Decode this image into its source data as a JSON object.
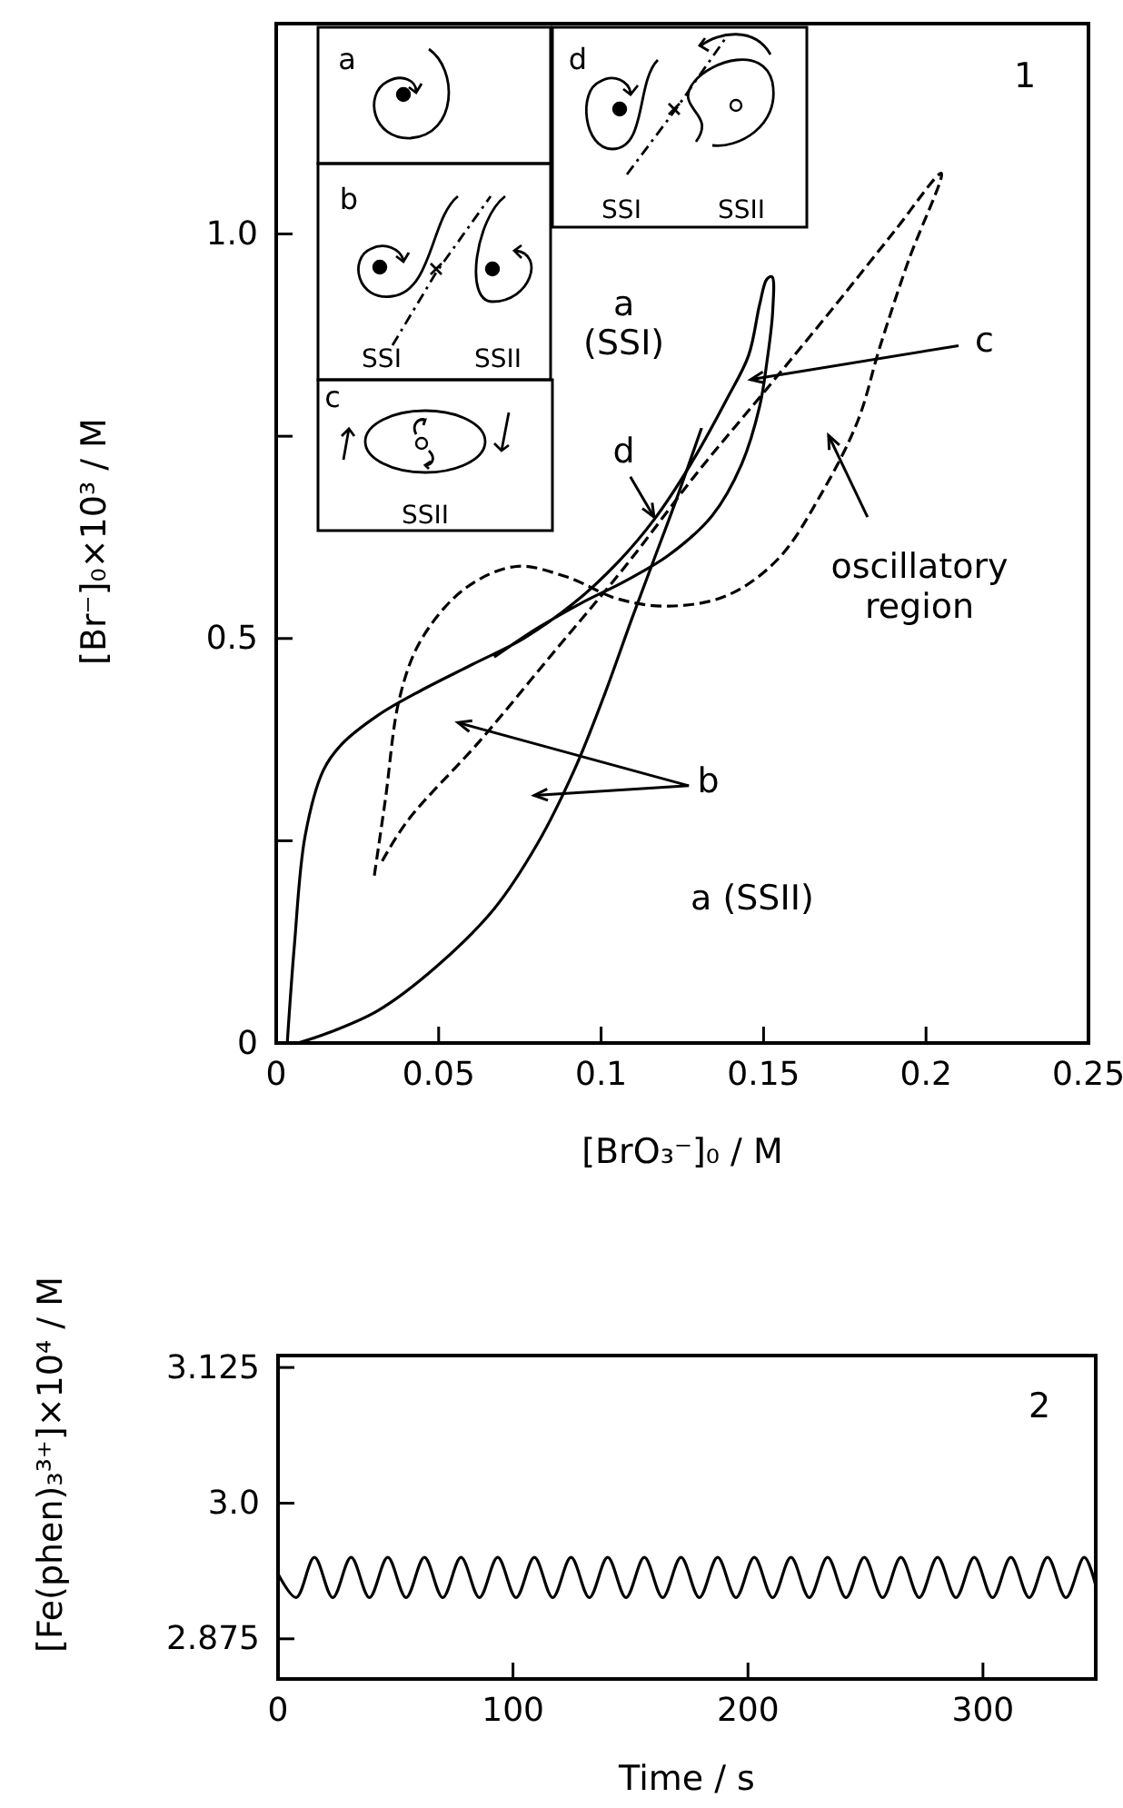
{
  "chart_data": [
    {
      "type": "line",
      "xlabel": "[BrO₃⁻]₀ / M",
      "ylabel": "[Br⁻]₀×10³ / M",
      "xlim": [
        0,
        0.25
      ],
      "ylim": [
        0,
        1.26
      ],
      "xticks": [
        0,
        0.05,
        0.1,
        0.15,
        0.2,
        0.25
      ],
      "yticks": [
        0,
        {
          "value": 0.25,
          "label": null
        },
        {
          "value": 0.5,
          "label": "0.5"
        },
        {
          "value": 0.75,
          "label": null
        },
        {
          "value": 1.0,
          "label": "1.0"
        }
      ],
      "series": [
        {
          "color": "#000000",
          "line_style": "solid",
          "x": [
            0.0034,
            0.0056,
            0.0089,
            0.0145,
            0.0201,
            0.0313,
            0.0447,
            0.0604,
            0.0761,
            0.0917,
            0.1051,
            0.1163,
            0.1275,
            0.1387,
            0.1454,
            0.1488,
            0.151,
            0.1526,
            0.1528,
            0.151,
            0.1488,
            0.1432,
            0.1342,
            0.1208,
            0.1074,
            0.094,
            0.0805,
            0.0671
          ],
          "values": [
            0,
            0.121,
            0.256,
            0.337,
            0.369,
            0.405,
            0.436,
            0.468,
            0.5,
            0.544,
            0.594,
            0.647,
            0.715,
            0.796,
            0.85,
            0.913,
            0.944,
            0.947,
            0.904,
            0.841,
            0.787,
            0.715,
            0.652,
            0.603,
            0.571,
            0.544,
            0.513,
            0.477
          ]
        },
        {
          "color": "#000000",
          "line_style": "solid",
          "x": [
            0.0067,
            0.0157,
            0.0313,
            0.0492,
            0.0671,
            0.0805,
            0.0917,
            0.1007,
            0.1096,
            0.1163,
            0.123,
            0.1309
          ],
          "values": [
            0,
            0.012,
            0.04,
            0.094,
            0.166,
            0.247,
            0.337,
            0.427,
            0.526,
            0.598,
            0.67,
            0.76
          ]
        },
        {
          "color": "#000000",
          "line_style": "dashed",
          "x": [
            0.0302,
            0.0336,
            0.038,
            0.0447,
            0.0582,
            0.0738,
            0.0895,
            0.1051,
            0.1208,
            0.1387,
            0.1544,
            0.1678,
            0.179,
            0.1857,
            0.1946,
            0.2047,
            0.1902,
            0.1723,
            0.1521,
            0.1298,
            0.1074,
            0.085,
            0.0626,
            0.0403,
            0.0318
          ],
          "values": [
            0.207,
            0.301,
            0.427,
            0.499,
            0.562,
            0.589,
            0.576,
            0.549,
            0.54,
            0.553,
            0.598,
            0.679,
            0.769,
            0.859,
            0.967,
            1.075,
            1.003,
            0.913,
            0.814,
            0.706,
            0.589,
            0.481,
            0.373,
            0.274,
            0.219
          ]
        }
      ],
      "annotations": [
        "1",
        "a (SSI)",
        "a (SSII)",
        "c",
        "d",
        "b",
        "oscillatory region",
        "a",
        "b",
        "c",
        "d",
        "SSI",
        "SSII",
        "SSII",
        "SSI",
        "SSII"
      ]
    },
    {
      "type": "line",
      "xlabel": "Time / s",
      "ylabel": "[Fe(phen)₃³⁺]×10⁴ / M",
      "xlim": [
        0,
        348
      ],
      "ylim": [
        2.838,
        3.136
      ],
      "xticks": [
        0,
        100,
        200,
        300
      ],
      "yticks": [
        {
          "value": 2.875,
          "label": "2.875"
        },
        {
          "value": 3.0,
          "label": "3.0"
        },
        {
          "value": 3.125,
          "label": "3.125"
        }
      ],
      "series": [
        {
          "color": "#000000",
          "line_style": "solid",
          "x": [
            0,
            7.7,
            15.5,
            23.3,
            31.1,
            38.9,
            46.7,
            54.5,
            62.3,
            70.1,
            77.9,
            85.7,
            93.5,
            101.3,
            109.1,
            116.9,
            124.7,
            132.5,
            140.3,
            148.1,
            155.9,
            163.7,
            171.5,
            179.3,
            187.1,
            194.9,
            202.7,
            210.5,
            218.3,
            226.1,
            233.9,
            241.7,
            249.5,
            257.3,
            265.1,
            272.9,
            280.7,
            288.5,
            296.3,
            304.1,
            311.9,
            319.7,
            327.5,
            335.3,
            343.1,
            348
          ],
          "values": [
            2.935,
            2.913,
            2.95,
            2.913,
            2.95,
            2.913,
            2.95,
            2.913,
            2.95,
            2.913,
            2.95,
            2.913,
            2.95,
            2.913,
            2.95,
            2.913,
            2.95,
            2.913,
            2.95,
            2.913,
            2.95,
            2.913,
            2.95,
            2.913,
            2.95,
            2.913,
            2.95,
            2.913,
            2.95,
            2.913,
            2.95,
            2.913,
            2.95,
            2.913,
            2.95,
            2.913,
            2.95,
            2.913,
            2.95,
            2.913,
            2.95,
            2.913,
            2.95,
            2.913,
            2.95,
            2.924
          ]
        }
      ],
      "annotations": [
        "2"
      ]
    }
  ]
}
